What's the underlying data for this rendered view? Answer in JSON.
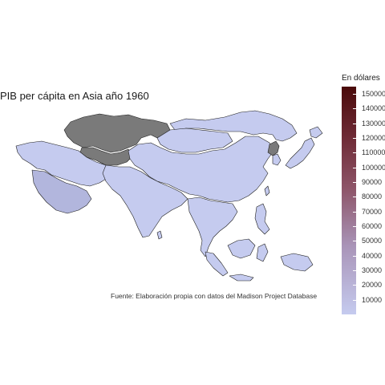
{
  "title": "PIB per cápita en Asia año 1960",
  "source": "Fuente: Elaboración propia con datos del Madison Project Database",
  "legend": {
    "title": "En dólares",
    "min": 0,
    "max": 155000,
    "ticks": [
      "150000",
      "140000",
      "130000",
      "120000",
      "110000",
      "100000",
      "90000",
      "80000",
      "70000",
      "60000",
      "50000",
      "40000",
      "30000",
      "20000",
      "10000"
    ],
    "tick_values": [
      150000,
      140000,
      130000,
      120000,
      110000,
      100000,
      90000,
      80000,
      70000,
      60000,
      50000,
      40000,
      30000,
      20000,
      10000
    ],
    "colors": {
      "high": "#4a0a0a",
      "low": "#c5cbef",
      "no_data": "#7a7a7a",
      "border": "#1e1e1e"
    }
  },
  "regions": [
    {
      "name": "kazajistan-region",
      "status": "no_data"
    },
    {
      "name": "central-asia-region",
      "status": "no_data"
    },
    {
      "name": "mongolia-region",
      "status": "low"
    },
    {
      "name": "russia-far-east-region",
      "status": "low"
    },
    {
      "name": "china-region",
      "status": "low"
    },
    {
      "name": "india-region",
      "status": "low"
    },
    {
      "name": "middle-east-region",
      "status": "low"
    },
    {
      "name": "arabian-peninsula-region",
      "status": "mid"
    },
    {
      "name": "southeast-asia-region",
      "status": "low"
    },
    {
      "name": "korea-north-region",
      "status": "no_data"
    },
    {
      "name": "japan-region",
      "status": "low"
    },
    {
      "name": "indonesia-region",
      "status": "low"
    },
    {
      "name": "philippines-region",
      "status": "low"
    }
  ]
}
